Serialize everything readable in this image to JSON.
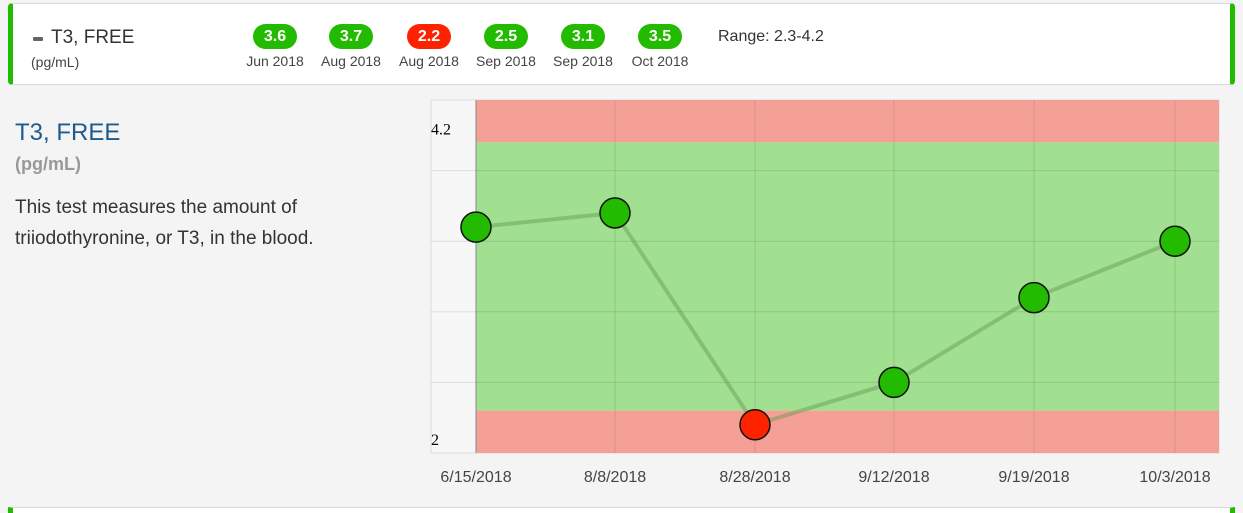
{
  "summary": {
    "title": "T3, FREE",
    "unit": "(pg/mL)",
    "range_text": "Range: 2.3-4.2",
    "results": [
      {
        "value": "3.6",
        "date": "Jun 2018",
        "status": "normal"
      },
      {
        "value": "3.7",
        "date": "Aug 2018",
        "status": "normal"
      },
      {
        "value": "2.2",
        "date": "Aug 2018",
        "status": "low"
      },
      {
        "value": "2.5",
        "date": "Sep 2018",
        "status": "normal"
      },
      {
        "value": "3.1",
        "date": "Sep 2018",
        "status": "normal"
      },
      {
        "value": "3.5",
        "date": "Oct 2018",
        "status": "normal"
      }
    ]
  },
  "detail": {
    "title": "T3, FREE",
    "unit": "(pg/mL)",
    "description": "This test measures the amount of triiodothyronine, or T3, in the blood."
  },
  "colors": {
    "normal": "#22bb00",
    "low": "#ff2200",
    "band_normal": "#a0e090",
    "band_abnormal": "#f5a096"
  },
  "chart_data": {
    "type": "line",
    "x": [
      "6/15/2018",
      "8/8/2018",
      "8/28/2018",
      "9/12/2018",
      "9/19/2018",
      "10/3/2018"
    ],
    "y": [
      3.6,
      3.7,
      2.2,
      2.5,
      3.1,
      3.5
    ],
    "status": [
      "normal",
      "normal",
      "low",
      "normal",
      "normal",
      "normal"
    ],
    "ylim": [
      2,
      4.5
    ],
    "y_ticks_labeled": [
      "2",
      "4.2"
    ],
    "normal_range": [
      2.3,
      4.2
    ],
    "grid": true
  }
}
